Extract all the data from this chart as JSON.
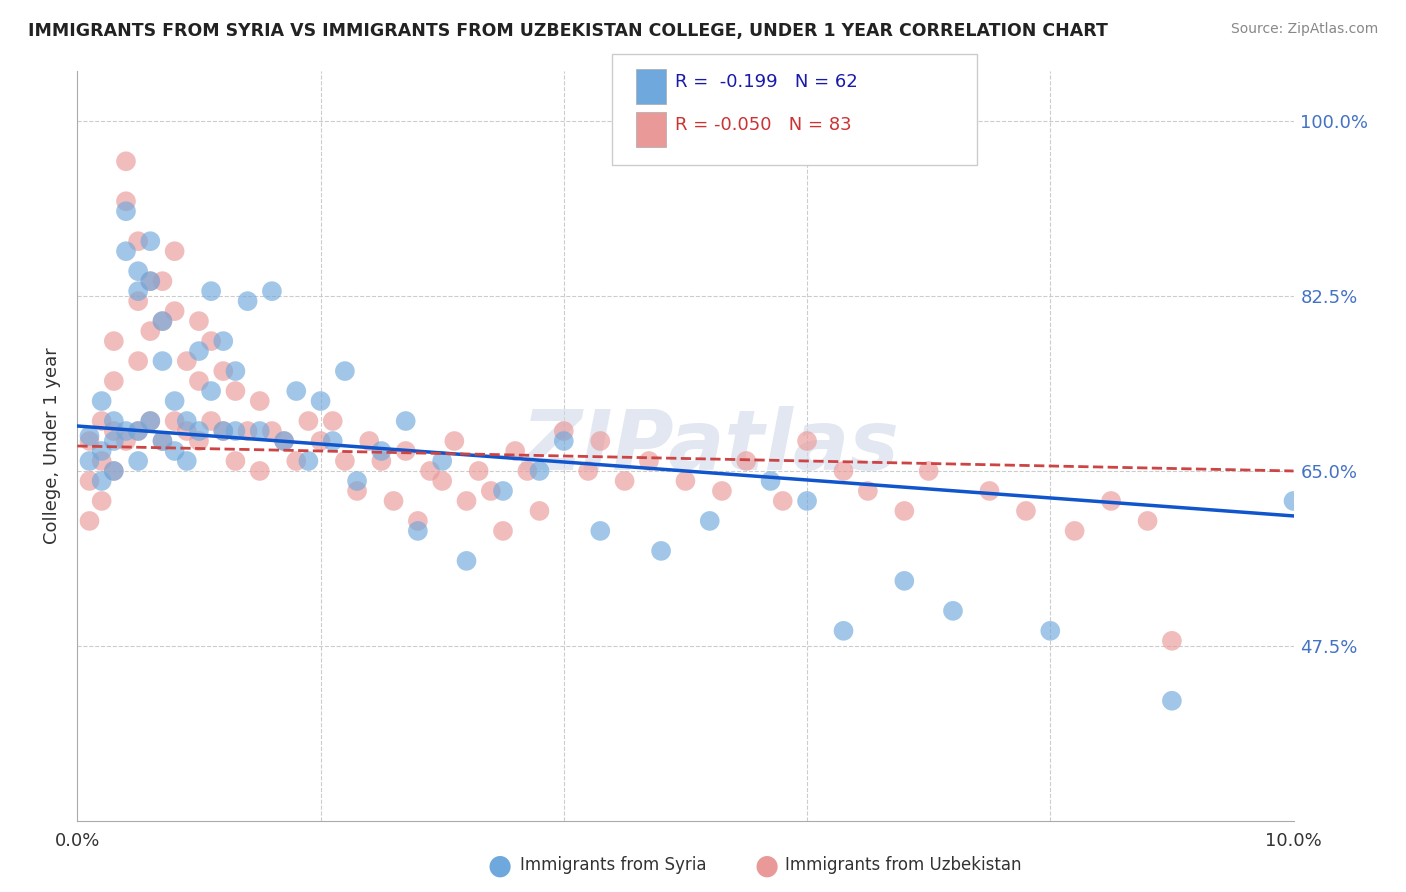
{
  "title": "IMMIGRANTS FROM SYRIA VS IMMIGRANTS FROM UZBEKISTAN COLLEGE, UNDER 1 YEAR CORRELATION CHART",
  "source": "Source: ZipAtlas.com",
  "ylabel": "College, Under 1 year",
  "xmin": 0.0,
  "xmax": 0.1,
  "ymin": 0.3,
  "ymax": 1.05,
  "yticks": [
    0.475,
    0.65,
    0.825,
    1.0
  ],
  "ytick_labels": [
    "47.5%",
    "65.0%",
    "82.5%",
    "100.0%"
  ],
  "legend_r_syria": "-0.199",
  "legend_n_syria": "62",
  "legend_r_uzbek": "-0.050",
  "legend_n_uzbek": "83",
  "syria_color": "#6fa8dc",
  "uzbek_color": "#ea9999",
  "syria_line_color": "#1155cc",
  "uzbek_line_color": "#cc4444",
  "background_color": "#ffffff",
  "watermark": "ZIPatlas",
  "syria_line": [
    0.0,
    0.695,
    0.1,
    0.605
  ],
  "uzbek_line": [
    0.0,
    0.675,
    0.1,
    0.65
  ],
  "syria_x": [
    0.001,
    0.001,
    0.002,
    0.002,
    0.002,
    0.003,
    0.003,
    0.003,
    0.004,
    0.004,
    0.004,
    0.005,
    0.005,
    0.005,
    0.005,
    0.006,
    0.006,
    0.006,
    0.007,
    0.007,
    0.007,
    0.008,
    0.008,
    0.009,
    0.009,
    0.01,
    0.01,
    0.011,
    0.011,
    0.012,
    0.012,
    0.013,
    0.013,
    0.014,
    0.015,
    0.016,
    0.017,
    0.018,
    0.019,
    0.02,
    0.021,
    0.022,
    0.023,
    0.025,
    0.027,
    0.028,
    0.03,
    0.032,
    0.035,
    0.038,
    0.04,
    0.043,
    0.048,
    0.052,
    0.057,
    0.06,
    0.063,
    0.068,
    0.072,
    0.08,
    0.09,
    0.1
  ],
  "syria_y": [
    0.685,
    0.66,
    0.72,
    0.67,
    0.64,
    0.7,
    0.68,
    0.65,
    0.91,
    0.87,
    0.69,
    0.85,
    0.83,
    0.69,
    0.66,
    0.88,
    0.84,
    0.7,
    0.8,
    0.76,
    0.68,
    0.72,
    0.67,
    0.7,
    0.66,
    0.77,
    0.69,
    0.83,
    0.73,
    0.78,
    0.69,
    0.75,
    0.69,
    0.82,
    0.69,
    0.83,
    0.68,
    0.73,
    0.66,
    0.72,
    0.68,
    0.75,
    0.64,
    0.67,
    0.7,
    0.59,
    0.66,
    0.56,
    0.63,
    0.65,
    0.68,
    0.59,
    0.57,
    0.6,
    0.64,
    0.62,
    0.49,
    0.54,
    0.51,
    0.49,
    0.42,
    0.62
  ],
  "uzbek_x": [
    0.001,
    0.001,
    0.001,
    0.002,
    0.002,
    0.002,
    0.003,
    0.003,
    0.003,
    0.003,
    0.004,
    0.004,
    0.004,
    0.005,
    0.005,
    0.005,
    0.005,
    0.006,
    0.006,
    0.006,
    0.007,
    0.007,
    0.007,
    0.008,
    0.008,
    0.008,
    0.009,
    0.009,
    0.01,
    0.01,
    0.01,
    0.011,
    0.011,
    0.012,
    0.012,
    0.013,
    0.013,
    0.014,
    0.015,
    0.015,
    0.016,
    0.017,
    0.018,
    0.019,
    0.02,
    0.021,
    0.022,
    0.023,
    0.024,
    0.025,
    0.026,
    0.027,
    0.028,
    0.029,
    0.03,
    0.031,
    0.032,
    0.033,
    0.034,
    0.035,
    0.036,
    0.037,
    0.038,
    0.04,
    0.042,
    0.043,
    0.045,
    0.047,
    0.05,
    0.053,
    0.055,
    0.058,
    0.06,
    0.063,
    0.065,
    0.068,
    0.07,
    0.075,
    0.078,
    0.082,
    0.085,
    0.088,
    0.09
  ],
  "uzbek_y": [
    0.68,
    0.64,
    0.6,
    0.7,
    0.66,
    0.62,
    0.78,
    0.74,
    0.69,
    0.65,
    0.96,
    0.92,
    0.68,
    0.88,
    0.82,
    0.76,
    0.69,
    0.84,
    0.79,
    0.7,
    0.84,
    0.8,
    0.68,
    0.87,
    0.81,
    0.7,
    0.76,
    0.69,
    0.8,
    0.74,
    0.68,
    0.78,
    0.7,
    0.75,
    0.69,
    0.73,
    0.66,
    0.69,
    0.72,
    0.65,
    0.69,
    0.68,
    0.66,
    0.7,
    0.68,
    0.7,
    0.66,
    0.63,
    0.68,
    0.66,
    0.62,
    0.67,
    0.6,
    0.65,
    0.64,
    0.68,
    0.62,
    0.65,
    0.63,
    0.59,
    0.67,
    0.65,
    0.61,
    0.69,
    0.65,
    0.68,
    0.64,
    0.66,
    0.64,
    0.63,
    0.66,
    0.62,
    0.68,
    0.65,
    0.63,
    0.61,
    0.65,
    0.63,
    0.61,
    0.59,
    0.62,
    0.6,
    0.48
  ]
}
